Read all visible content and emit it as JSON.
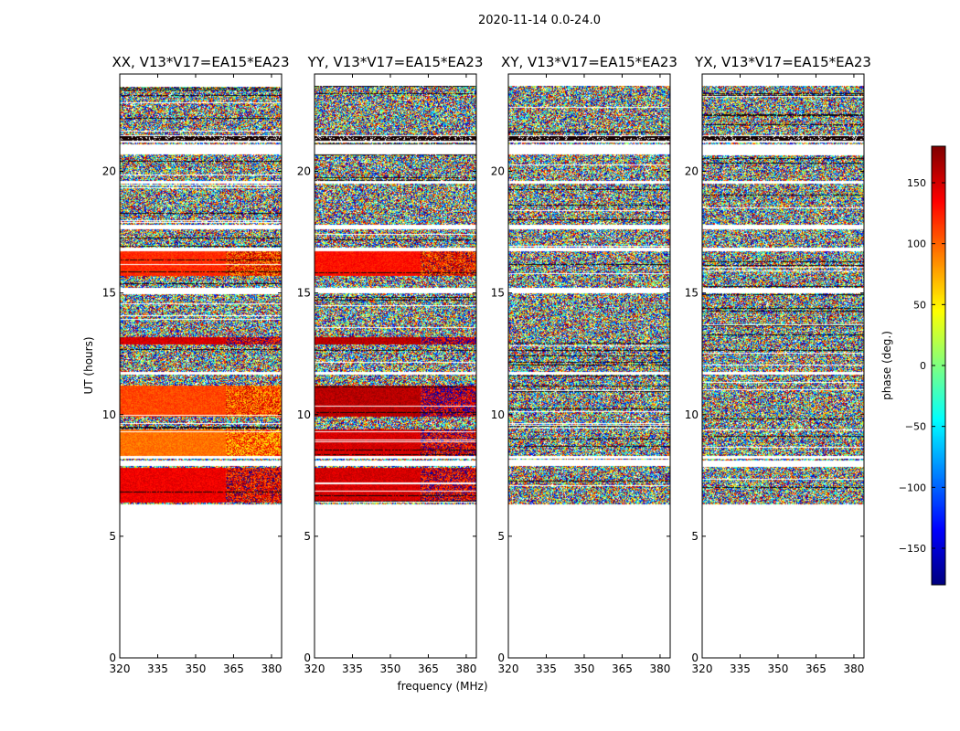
{
  "suptitle": "2020-11-14 0.0-24.0",
  "xlabel": "frequency (MHz)",
  "ylabel": "UT (hours)",
  "colorbar": {
    "label": "phase (deg.)",
    "range": [
      -180,
      180
    ],
    "ticks": [
      150,
      100,
      50,
      0,
      -50,
      -100,
      -150
    ],
    "tick_labels": [
      "150",
      "100",
      "50",
      "0",
      "−50",
      "−100",
      "−150"
    ],
    "colormap": "jet"
  },
  "chart_data": [
    {
      "type": "heatmap",
      "title": "XX, V13*V17=EA15*EA23",
      "xlim": [
        320,
        384
      ],
      "ylim": [
        0,
        24
      ],
      "xticks": [
        "320",
        "335",
        "350",
        "365",
        "380"
      ],
      "yticks": [
        "0",
        "5",
        "10",
        "15",
        "20"
      ],
      "value": "phase (deg.)",
      "data_extent_hours": [
        6.3,
        23.5
      ],
      "coherent_bands": [
        {
          "t0": 8.3,
          "t1": 9.4,
          "phase_deg": 95
        },
        {
          "t0": 9.9,
          "t1": 11.2,
          "phase_deg": 110
        },
        {
          "t0": 12.9,
          "t1": 13.2,
          "phase_deg": 150
        },
        {
          "t0": 15.7,
          "t1": 16.7,
          "phase_deg": 120
        },
        {
          "t0": 6.4,
          "t1": 7.8,
          "phase_deg": 140
        }
      ]
    },
    {
      "type": "heatmap",
      "title": "YY, V13*V17=EA15*EA23",
      "xlim": [
        320,
        384
      ],
      "ylim": [
        0,
        24
      ],
      "xticks": [
        "320",
        "335",
        "350",
        "365",
        "380"
      ],
      "yticks": [
        "0",
        "5",
        "10",
        "15",
        "20"
      ],
      "value": "phase (deg.)",
      "data_extent_hours": [
        6.3,
        23.5
      ],
      "coherent_bands": [
        {
          "t0": 8.3,
          "t1": 9.4,
          "phase_deg": 150
        },
        {
          "t0": 9.9,
          "t1": 11.2,
          "phase_deg": 160
        },
        {
          "t0": 12.9,
          "t1": 13.2,
          "phase_deg": 160
        },
        {
          "t0": 15.7,
          "t1": 16.7,
          "phase_deg": 130
        },
        {
          "t0": 6.4,
          "t1": 7.8,
          "phase_deg": 150
        }
      ]
    },
    {
      "type": "heatmap",
      "title": "XY, V13*V17=EA15*EA23",
      "xlim": [
        320,
        384
      ],
      "ylim": [
        0,
        24
      ],
      "xticks": [
        "320",
        "335",
        "350",
        "365",
        "380"
      ],
      "yticks": [
        "0",
        "5",
        "10",
        "15",
        "20"
      ],
      "value": "phase (deg.)",
      "data_extent_hours": [
        6.3,
        23.5
      ],
      "coherent_bands": []
    },
    {
      "type": "heatmap",
      "title": "YX, V13*V17=EA15*EA23",
      "xlim": [
        320,
        384
      ],
      "ylim": [
        0,
        24
      ],
      "xticks": [
        "320",
        "335",
        "350",
        "365",
        "380"
      ],
      "yticks": [
        "0",
        "5",
        "10",
        "15",
        "20"
      ],
      "value": "phase (deg.)",
      "data_extent_hours": [
        6.3,
        23.5
      ],
      "coherent_bands": []
    }
  ]
}
